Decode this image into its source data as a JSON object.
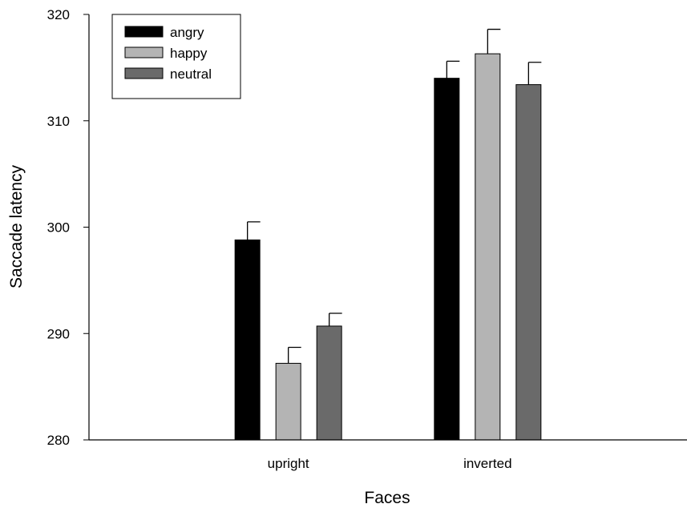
{
  "chart_data": {
    "type": "bar",
    "xlabel": "Faces",
    "ylabel": "Saccade latency",
    "ylim": [
      280,
      320
    ],
    "yticks": [
      280,
      290,
      300,
      310,
      320
    ],
    "categories": [
      "upright",
      "inverted"
    ],
    "series": [
      {
        "name": "angry",
        "color": "#000000",
        "values": [
          298.8,
          314.0
        ],
        "errors": [
          1.7,
          1.6
        ]
      },
      {
        "name": "happy",
        "color": "#b4b4b4",
        "values": [
          287.2,
          316.3
        ],
        "errors": [
          1.5,
          2.3
        ]
      },
      {
        "name": "neutral",
        "color": "#6a6a6a",
        "values": [
          290.7,
          313.4
        ],
        "errors": [
          1.2,
          2.1
        ]
      }
    ],
    "legend_position": "top-left",
    "grid": false
  }
}
